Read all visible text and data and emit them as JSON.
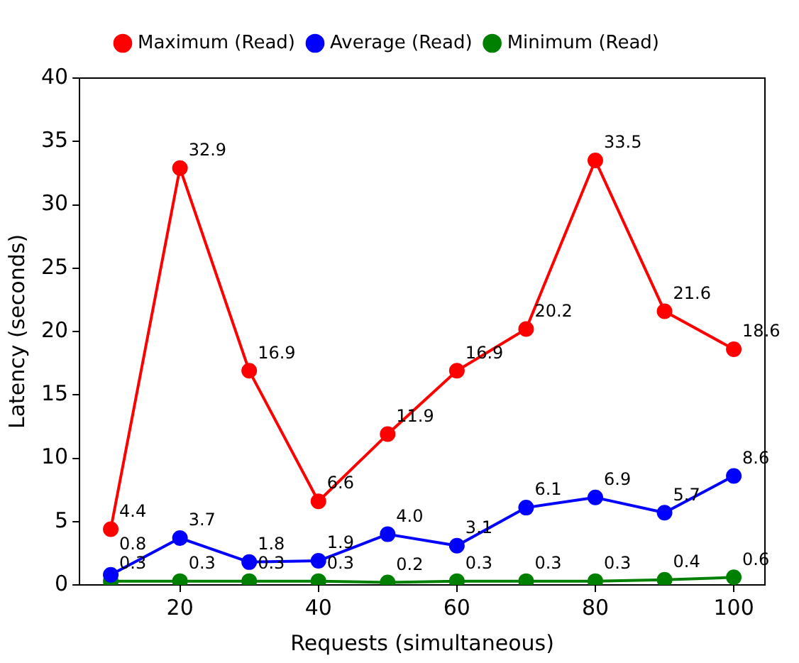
{
  "chart_data": {
    "type": "line",
    "xlabel": "Requests (simultaneous)",
    "ylabel": "Latency (seconds)",
    "x": [
      10,
      20,
      30,
      40,
      50,
      60,
      70,
      80,
      90,
      100
    ],
    "series": [
      {
        "name": "Maximum (Read)",
        "color": "#ff0000",
        "values": [
          4.4,
          32.9,
          16.9,
          6.6,
          11.9,
          16.9,
          20.2,
          33.5,
          21.6,
          18.6
        ],
        "value_labels": [
          "4.4",
          "32.9",
          "16.9",
          "6.6",
          "11.9",
          "16.9",
          "20.2",
          "33.5",
          "21.6",
          "18.6"
        ]
      },
      {
        "name": "Average (Read)",
        "color": "#0000ff",
        "values": [
          0.8,
          3.7,
          1.8,
          1.9,
          4.0,
          3.1,
          6.1,
          6.9,
          5.7,
          8.6
        ],
        "value_labels": [
          "0.8",
          "3.7",
          "1.8",
          "1.9",
          "4.0",
          "3.1",
          "6.1",
          "6.9",
          "5.7",
          "8.6"
        ]
      },
      {
        "name": "Minimum (Read)",
        "color": "#008000",
        "values": [
          0.3,
          0.3,
          0.3,
          0.3,
          0.2,
          0.3,
          0.3,
          0.3,
          0.4,
          0.6
        ],
        "value_labels": [
          "0.3",
          "0.3",
          "0.3",
          "0.3",
          "0.2",
          "0.3",
          "0.3",
          "0.3",
          "0.4",
          "0.6"
        ]
      }
    ],
    "xlim": [
      5.5,
      104.5
    ],
    "xticks": [
      20,
      40,
      60,
      80,
      100
    ],
    "ylim": [
      0,
      40
    ],
    "yticks": [
      0,
      5,
      10,
      15,
      20,
      25,
      30,
      35,
      40
    ],
    "grid": false,
    "legend": "top",
    "marker": "circle",
    "line_style": "solid"
  }
}
